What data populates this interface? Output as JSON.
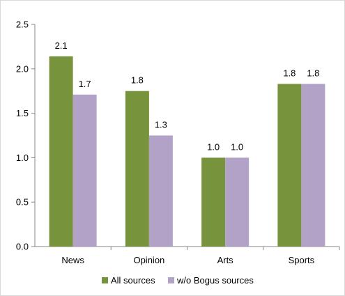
{
  "chart_data": {
    "type": "bar",
    "categories": [
      "News",
      "Opinion",
      "Arts",
      "Sports"
    ],
    "series": [
      {
        "name": "All sources",
        "values": [
          2.14,
          1.75,
          1.0,
          1.83
        ],
        "labels": [
          "2.1",
          "1.8",
          "1.0",
          "1.8"
        ],
        "color": "#77933c"
      },
      {
        "name": "w/o Bogus sources",
        "values": [
          1.71,
          1.25,
          1.0,
          1.83
        ],
        "labels": [
          "1.7",
          "1.3",
          "1.0",
          "1.8"
        ],
        "color": "#b3a2c7"
      }
    ],
    "ylim": [
      0,
      2.5
    ],
    "yticks": [
      "0.0",
      "0.5",
      "1.0",
      "1.5",
      "2.0",
      "2.5"
    ],
    "ytick_values": [
      0,
      0.5,
      1.0,
      1.5,
      2.0,
      2.5
    ],
    "grid": false,
    "legend_position": "bottom"
  }
}
